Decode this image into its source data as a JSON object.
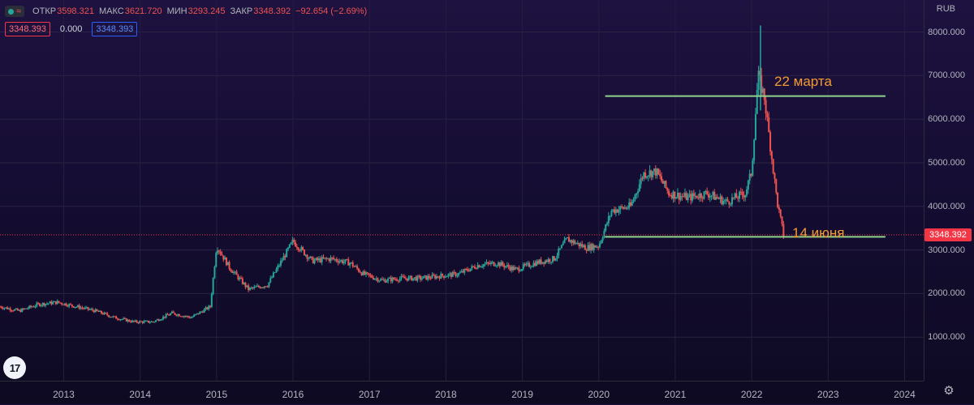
{
  "legend": {
    "open_label": "ОТКР",
    "open_value": "3598.321",
    "high_label": "МАКС",
    "high_value": "3621.720",
    "low_label": "МИН",
    "low_value": "3293.245",
    "close_label": "ЗАКР",
    "close_value": "3348.392",
    "change": "−92.654 (−2.69%)",
    "symbol_icons": [
      "dot-icon",
      "wave-icon"
    ]
  },
  "badges": {
    "red": "3348.393",
    "plain": "0.000",
    "blue": "3348.393"
  },
  "currency": "RUB",
  "last_price_label": "3348.392",
  "annotations": {
    "march": "22 марта",
    "june": "14 июня"
  },
  "logo_text": "17",
  "colors": {
    "up": "#26a69a",
    "down": "#ef5350",
    "level_line": "#8fd48a",
    "annotation": "#f39c34",
    "price_tag": "#f23645"
  },
  "chart_data": {
    "type": "candlestick",
    "currency": "RUB",
    "y_ticks": [
      1000,
      2000,
      3000,
      4000,
      5000,
      6000,
      7000,
      8000
    ],
    "y_tick_labels": [
      "1000.000",
      "2000.000",
      "3000.000",
      "4000.000",
      "5000.000",
      "6000.000",
      "7000.000",
      "8000.000"
    ],
    "x_ticks": [
      "2013",
      "2014",
      "2015",
      "2016",
      "2017",
      "2018",
      "2019",
      "2020",
      "2021",
      "2022",
      "2023",
      "2024"
    ],
    "ylim": [
      0,
      8400
    ],
    "xlim": [
      "2012-03",
      "2024-04"
    ],
    "last_price": 3348.392,
    "levels": [
      {
        "value": 6530,
        "start": "2020-02",
        "end": "2023-10",
        "label": "22 марта"
      },
      {
        "value": 3300,
        "start": "2020-02",
        "end": "2023-10",
        "label": "14 июня"
      }
    ],
    "price_path": [
      [
        "2012-03",
        1700
      ],
      [
        "2012-06",
        1600
      ],
      [
        "2012-09",
        1750
      ],
      [
        "2012-12",
        1800
      ],
      [
        "2013-03",
        1700
      ],
      [
        "2013-06",
        1600
      ],
      [
        "2013-09",
        1450
      ],
      [
        "2013-12",
        1350
      ],
      [
        "2014-03",
        1350
      ],
      [
        "2014-06",
        1550
      ],
      [
        "2014-09",
        1450
      ],
      [
        "2014-12",
        1700
      ],
      [
        "2015-01",
        3100
      ],
      [
        "2015-03",
        2600
      ],
      [
        "2015-06",
        2100
      ],
      [
        "2015-09",
        2200
      ],
      [
        "2015-11",
        2700
      ],
      [
        "2016-01",
        3200
      ],
      [
        "2016-04",
        2750
      ],
      [
        "2016-07",
        2800
      ],
      [
        "2016-10",
        2700
      ],
      [
        "2016-12",
        2450
      ],
      [
        "2017-03",
        2300
      ],
      [
        "2017-06",
        2350
      ],
      [
        "2017-09",
        2350
      ],
      [
        "2017-12",
        2400
      ],
      [
        "2018-03",
        2450
      ],
      [
        "2018-06",
        2650
      ],
      [
        "2018-09",
        2700
      ],
      [
        "2018-12",
        2550
      ],
      [
        "2019-03",
        2700
      ],
      [
        "2019-06",
        2800
      ],
      [
        "2019-08",
        3250
      ],
      [
        "2019-11",
        3050
      ],
      [
        "2020-01",
        3100
      ],
      [
        "2020-03",
        3900
      ],
      [
        "2020-06",
        4000
      ],
      [
        "2020-08",
        4750
      ],
      [
        "2020-10",
        4800
      ],
      [
        "2020-12",
        4300
      ],
      [
        "2021-03",
        4200
      ],
      [
        "2021-06",
        4300
      ],
      [
        "2021-09",
        4100
      ],
      [
        "2021-12",
        4300
      ],
      [
        "2022-01",
        4800
      ],
      [
        "2022-02",
        7000
      ],
      [
        "2022-03",
        6500
      ],
      [
        "2022-04",
        5300
      ],
      [
        "2022-05",
        4100
      ],
      [
        "2022-06",
        3348
      ]
    ]
  }
}
